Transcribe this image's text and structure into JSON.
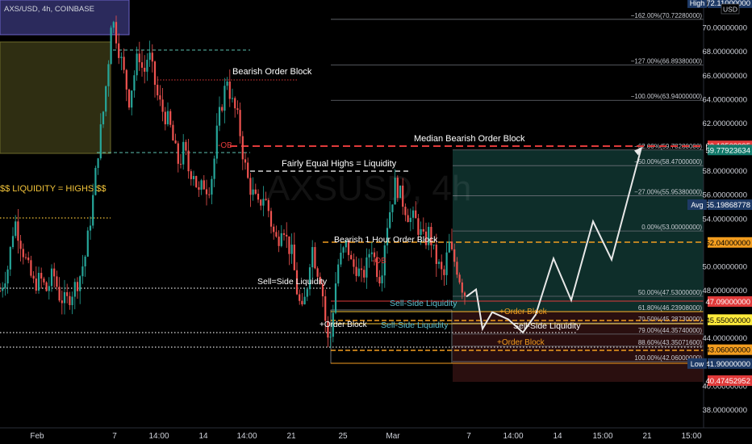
{
  "header": {
    "symbol_line": "AXS/USD, 4h, COINBASE",
    "currency": "USD"
  },
  "watermark": "AXSUSD, 4h",
  "price_axis": {
    "ticks": [
      {
        "v": 72.0,
        "label": "72.00000000"
      },
      {
        "v": 70.0,
        "label": "70.00000000"
      },
      {
        "v": 68.0,
        "label": "68.00000000"
      },
      {
        "v": 66.0,
        "label": "66.00000000"
      },
      {
        "v": 64.0,
        "label": "64.00000000"
      },
      {
        "v": 62.0,
        "label": "62.00000000"
      },
      {
        "v": 58.0,
        "label": "58.00000000"
      },
      {
        "v": 56.0,
        "label": "56.00000000"
      },
      {
        "v": 54.0,
        "label": "54.00000000"
      },
      {
        "v": 50.0,
        "label": "50.00000000"
      },
      {
        "v": 48.0,
        "label": "48.00000000"
      },
      {
        "v": 44.0,
        "label": "44.00000000"
      },
      {
        "v": 40.0,
        "label": "40.00000000"
      },
      {
        "v": 38.0,
        "label": "38.00000000"
      }
    ],
    "tags": [
      {
        "name": "high-tag",
        "side": "High",
        "label": "72.11000000",
        "v": 72.11,
        "bg": "#1e3a66",
        "fg": "#ffffff"
      },
      {
        "name": "tag-60-12",
        "label": "60.12509995",
        "v": 60.125,
        "bg": "#e03a3a",
        "fg": "#ffffff"
      },
      {
        "name": "tag-59-77",
        "label": "59.77923634",
        "v": 59.78,
        "bg": "#127a6b",
        "fg": "#ffffff"
      },
      {
        "name": "avg-tag",
        "side": "Avg",
        "label": "55.19868778",
        "v": 55.2,
        "bg": "#1e3a66",
        "fg": "#ffffff"
      },
      {
        "name": "tag-52-04",
        "label": "52.04000000",
        "v": 52.04,
        "bg": "#f29d1f",
        "fg": "#000000"
      },
      {
        "name": "tag-47-09",
        "label": "47.09000000",
        "v": 47.09,
        "bg": "#e03a3a",
        "fg": "#ffffff"
      },
      {
        "name": "tag-45-58",
        "label": "45.58000000",
        "v": 45.58,
        "bg": "#ffeb3b",
        "fg": "#000000"
      },
      {
        "name": "tag-45-55",
        "label": "45.55000000",
        "v": 45.55,
        "bg": "#ffeb3b",
        "fg": "#000000"
      },
      {
        "name": "tag-43-06",
        "label": "43.06000000",
        "v": 43.06,
        "bg": "#f29d1f",
        "fg": "#000000"
      },
      {
        "name": "low-tag",
        "side": "Low",
        "label": "41.90000000",
        "v": 41.9,
        "bg": "#1e3a66",
        "fg": "#ffffff"
      },
      {
        "name": "tag-40-47",
        "label": "40.47452952",
        "v": 40.47,
        "bg": "#e03a3a",
        "fg": "#ffffff"
      }
    ]
  },
  "time_axis": {
    "labels": [
      "Feb",
      "7",
      "14:00",
      "14",
      "14:00",
      "21",
      "25",
      "Mar",
      "7",
      "14:00",
      "14",
      "15:00",
      "21",
      "15:00"
    ]
  },
  "fib_levels": [
    {
      "v": 70.72,
      "label": "−162.00%(70.72280000)"
    },
    {
      "v": 66.89,
      "label": "−127.00%(66.89380000)"
    },
    {
      "v": 63.94,
      "label": "−100.00%(63.94000000)"
    },
    {
      "v": 59.78,
      "label": "−62.00%(59.78280000)"
    },
    {
      "v": 58.47,
      "label": "−50.00%(58.47000000)"
    },
    {
      "v": 55.95,
      "label": "−27.00%(55.95380000)"
    },
    {
      "v": 53.0,
      "label": "0.00%(53.00000000)"
    },
    {
      "v": 47.53,
      "label": "50.00%(47.53000000)"
    },
    {
      "v": 46.24,
      "label": "61.80%(46.23908000)"
    },
    {
      "v": 45.29,
      "label": "70.50%(45.28730000)"
    },
    {
      "v": 44.36,
      "label": "79.00%(44.35740000)"
    },
    {
      "v": 43.35,
      "label": "88.60%(43.35071600)"
    },
    {
      "v": 42.06,
      "label": "100.00%(42.06000000)"
    }
  ],
  "annotations": {
    "bearish_ob": "Bearish Order Block",
    "median_bearish_ob": "Median Bearish Order Block",
    "fairly_equal_highs": "Fairly Equal Highs = Liquidity",
    "liquidity_highs": "$$ LIQUIDITY = HIGHS $$",
    "bearish_1h_ob": "Bearish 1 Hour Order Block",
    "sell_side_liq_left": "Sell=Side Liquidity",
    "sell_side_liq_1": "Sell-Side Liquidity",
    "sell_side_liq_2": "Sell-Side Liquidity",
    "sell_side_liq_3": "Sell-Side Liquidity",
    "order_block_left": "+Order Block",
    "order_block_mid": "+Order Block",
    "order_block_right": "+Order Block",
    "ob_tag_1": "-OB",
    "ob_tag_2": "-OB"
  },
  "colors": {
    "bull": "#26a69a",
    "bear": "#ef5350",
    "accent_red": "#e03a3a",
    "accent_orange": "#f29d1f",
    "accent_yellow": "#ffeb3b",
    "projection": "#e8e8e8"
  },
  "chart_data": {
    "type": "candlestick",
    "title": "AXS/USD, 4h, COINBASE",
    "ylim": [
      36.5,
      72.5
    ],
    "close_path": [
      [
        0,
        48
      ],
      [
        10,
        50
      ],
      [
        18,
        54
      ],
      [
        26,
        52
      ],
      [
        34,
        50
      ],
      [
        42,
        48.5
      ],
      [
        50,
        49
      ],
      [
        58,
        48
      ],
      [
        66,
        49.5
      ],
      [
        74,
        47.5
      ],
      [
        82,
        47
      ],
      [
        90,
        48
      ],
      [
        98,
        49
      ],
      [
        106,
        51
      ],
      [
        114,
        55
      ],
      [
        122,
        60
      ],
      [
        128,
        63
      ],
      [
        134,
        67
      ],
      [
        138,
        71
      ],
      [
        142,
        70
      ],
      [
        148,
        68
      ],
      [
        154,
        66
      ],
      [
        160,
        64
      ],
      [
        166,
        66
      ],
      [
        172,
        68
      ],
      [
        178,
        66
      ],
      [
        184,
        68
      ],
      [
        190,
        66
      ],
      [
        196,
        64
      ],
      [
        202,
        63
      ],
      [
        210,
        62
      ],
      [
        216,
        60
      ],
      [
        222,
        58.5
      ],
      [
        228,
        60
      ],
      [
        234,
        58
      ],
      [
        240,
        58
      ],
      [
        246,
        56
      ],
      [
        252,
        57
      ],
      [
        258,
        56.5
      ],
      [
        264,
        58
      ],
      [
        270,
        62
      ],
      [
        276,
        64
      ],
      [
        282,
        66
      ],
      [
        286,
        64
      ],
      [
        292,
        63
      ],
      [
        296,
        62
      ],
      [
        302,
        59
      ],
      [
        308,
        57
      ],
      [
        314,
        56
      ],
      [
        320,
        55
      ],
      [
        326,
        56
      ],
      [
        332,
        55
      ],
      [
        338,
        53
      ],
      [
        344,
        52
      ],
      [
        350,
        54
      ],
      [
        356,
        52
      ],
      [
        362,
        51
      ],
      [
        368,
        48
      ],
      [
        374,
        46
      ],
      [
        380,
        48
      ],
      [
        386,
        52
      ],
      [
        392,
        50
      ],
      [
        398,
        49
      ],
      [
        404,
        45
      ],
      [
        408,
        43
      ],
      [
        412,
        46
      ],
      [
        418,
        50
      ],
      [
        424,
        51
      ],
      [
        430,
        52
      ],
      [
        436,
        50
      ],
      [
        442,
        50
      ],
      [
        448,
        49
      ],
      [
        454,
        50
      ],
      [
        460,
        52
      ],
      [
        466,
        50
      ],
      [
        472,
        49
      ],
      [
        478,
        53
      ],
      [
        484,
        55
      ],
      [
        490,
        57
      ],
      [
        496,
        56
      ],
      [
        502,
        55
      ],
      [
        508,
        54
      ],
      [
        514,
        54
      ],
      [
        520,
        53
      ],
      [
        526,
        52
      ],
      [
        532,
        53
      ],
      [
        538,
        51
      ],
      [
        544,
        50
      ],
      [
        550,
        49
      ],
      [
        556,
        52
      ],
      [
        560,
        51
      ],
      [
        566,
        50
      ],
      [
        572,
        48.5
      ],
      [
        578,
        47.5
      ]
    ],
    "projection": [
      [
        578,
        47.5
      ],
      [
        590,
        48.1
      ],
      [
        598,
        44.8
      ],
      [
        610,
        46.2
      ],
      [
        630,
        45.6
      ],
      [
        648,
        44.5
      ],
      [
        664,
        46.0
      ],
      [
        686,
        50.7
      ],
      [
        708,
        47.2
      ],
      [
        735,
        53.8
      ],
      [
        758,
        50.6
      ],
      [
        795,
        60.0
      ]
    ]
  }
}
